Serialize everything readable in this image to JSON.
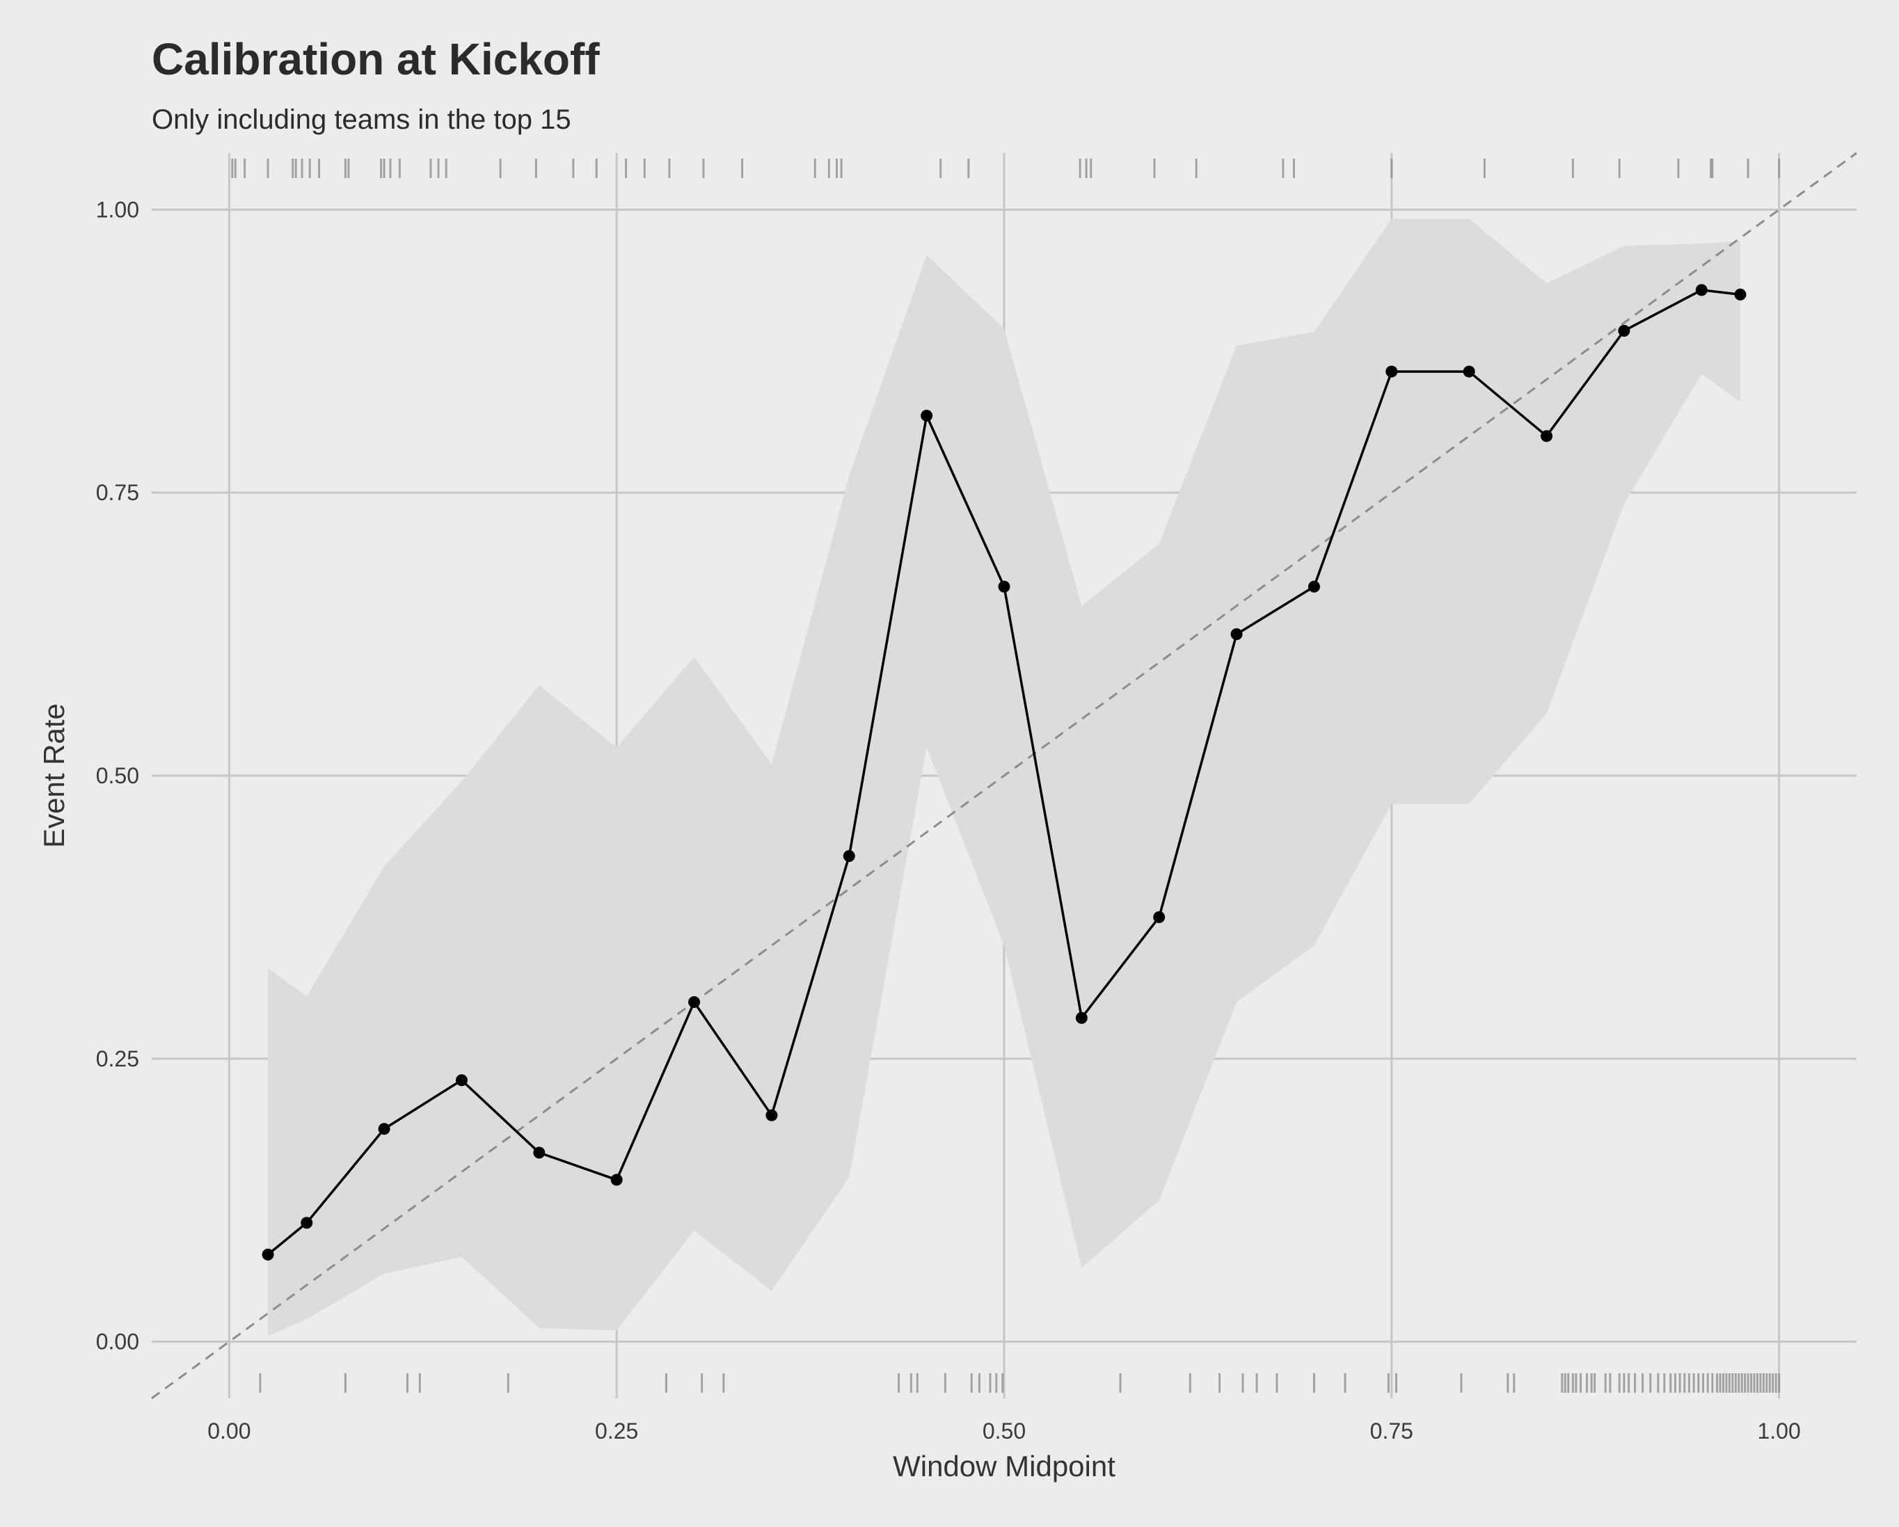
{
  "chart_data": {
    "type": "line",
    "title": "Calibration at Kickoff",
    "subtitle": "Only including teams in the top 15",
    "xlabel": "Window Midpoint",
    "ylabel": "Event Rate",
    "xlim": [
      -0.05,
      1.05
    ],
    "ylim": [
      -0.05,
      1.05
    ],
    "x_ticks": [
      0.0,
      0.25,
      0.5,
      0.75,
      1.0
    ],
    "x_tick_labels": [
      "0.00",
      "0.25",
      "0.50",
      "0.75",
      "1.00"
    ],
    "y_ticks": [
      0.0,
      0.25,
      0.5,
      0.75,
      1.0
    ],
    "y_tick_labels": [
      "0.00",
      "0.25",
      "0.50",
      "0.75",
      "1.00"
    ],
    "grid": true,
    "reference_line": {
      "x": [
        0,
        1
      ],
      "y": [
        0,
        1
      ],
      "style": "dashed"
    },
    "series": [
      {
        "x": [
          0.025,
          0.05,
          0.1,
          0.15,
          0.2,
          0.25,
          0.3,
          0.35,
          0.4,
          0.45,
          0.5,
          0.55,
          0.6,
          0.65,
          0.7,
          0.75,
          0.8,
          0.85,
          0.9,
          0.95,
          0.975
        ],
        "y": [
          0.077,
          0.105,
          0.188,
          0.231,
          0.167,
          0.143,
          0.3,
          0.2,
          0.429,
          0.818,
          0.667,
          0.286,
          0.375,
          0.625,
          0.667,
          0.857,
          0.857,
          0.8,
          0.893,
          0.929,
          0.925
        ],
        "ci_lower": [
          0.005,
          0.02,
          0.06,
          0.075,
          0.012,
          0.01,
          0.098,
          0.045,
          0.145,
          0.525,
          0.35,
          0.065,
          0.125,
          0.3,
          0.35,
          0.475,
          0.475,
          0.555,
          0.74,
          0.855,
          0.83
        ],
        "ci_upper": [
          0.33,
          0.305,
          0.42,
          0.495,
          0.58,
          0.525,
          0.605,
          0.51,
          0.765,
          0.96,
          0.895,
          0.65,
          0.705,
          0.88,
          0.892,
          0.992,
          0.992,
          0.935,
          0.968,
          0.97,
          0.972
        ]
      }
    ],
    "rug_top": [
      0.002,
      0.004,
      0.01,
      0.025,
      0.041,
      0.043,
      0.047,
      0.052,
      0.058,
      0.075,
      0.077,
      0.098,
      0.1,
      0.104,
      0.11,
      0.13,
      0.135,
      0.14,
      0.175,
      0.198,
      0.222,
      0.237,
      0.256,
      0.268,
      0.284,
      0.306,
      0.331,
      0.378,
      0.387,
      0.392,
      0.395,
      0.459,
      0.477,
      0.549,
      0.553,
      0.556,
      0.597,
      0.624,
      0.68,
      0.687,
      0.75,
      0.81,
      0.867,
      0.897,
      0.935,
      0.956,
      0.957,
      0.98,
      1.0
    ],
    "rug_bottom": [
      0.02,
      0.075,
      0.115,
      0.123,
      0.18,
      0.282,
      0.305,
      0.319,
      0.432,
      0.44,
      0.444,
      0.462,
      0.479,
      0.484,
      0.491,
      0.495,
      0.499,
      0.575,
      0.62,
      0.639,
      0.654,
      0.663,
      0.676,
      0.7,
      0.72,
      0.748,
      0.753,
      0.795,
      0.825,
      0.829,
      0.86,
      0.862,
      0.864,
      0.867,
      0.869,
      0.872,
      0.876,
      0.879,
      0.881,
      0.888,
      0.891,
      0.897,
      0.9,
      0.903,
      0.907,
      0.912,
      0.917,
      0.922,
      0.926,
      0.93,
      0.933,
      0.936,
      0.939,
      0.942,
      0.945,
      0.948,
      0.951,
      0.954,
      0.957,
      0.96,
      0.962,
      0.964,
      0.966,
      0.968,
      0.97,
      0.972,
      0.974,
      0.976,
      0.978,
      0.98,
      0.982,
      0.984,
      0.986,
      0.988,
      0.99,
      0.992,
      0.994,
      0.996,
      0.998,
      1.0
    ],
    "colors": {
      "background": "#ececec",
      "grid": "#c6c6c6",
      "ribbon": "#dcdcdc",
      "line": "#000000",
      "reference": "#8c8c8c",
      "rug": "#8a8a8a"
    }
  }
}
